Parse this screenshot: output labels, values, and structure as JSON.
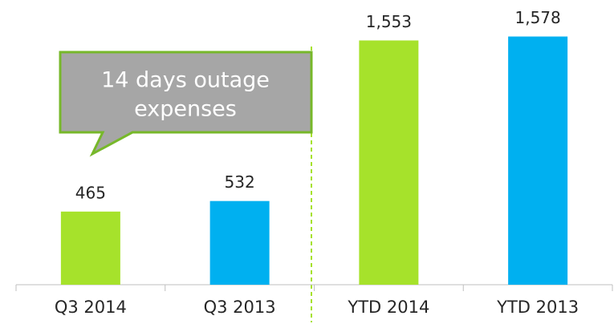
{
  "chart_data": {
    "type": "bar",
    "categories": [
      "Q3 2014",
      "Q3 2013",
      "YTD 2014",
      "YTD 2013"
    ],
    "values": [
      465,
      532,
      1553,
      1578
    ],
    "value_labels": [
      "465",
      "532",
      "1,553",
      "1,578"
    ],
    "colors": [
      "#a6e22b",
      "#00b0f0",
      "#a6e22b",
      "#00b0f0"
    ],
    "ylim": [
      0,
      1800
    ],
    "annotation": [
      "14 days outage",
      "expenses"
    ]
  }
}
